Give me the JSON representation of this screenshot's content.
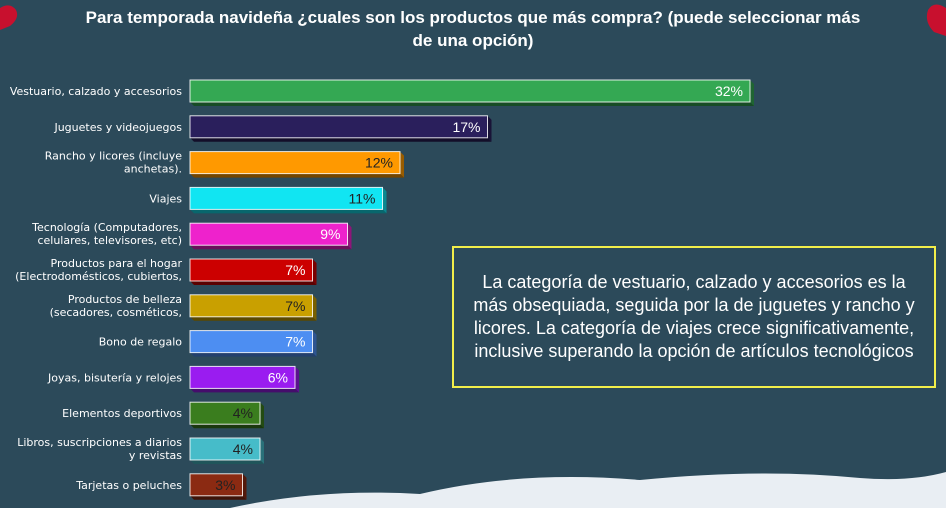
{
  "title_lines": [
    "Para temporada navideña ¿cuales son los productos que más compra? (puede seleccionar más",
    "de una opción)"
  ],
  "insight": "La categoría de vestuario, calzado y accesorios es la más obsequiada, seguida por la de juguetes y rancho y licores. La categoría de viajes crece significativamente, inclusive superando la opción de artículos tecnológicos",
  "colors": {
    "background": "#2c4a5a",
    "label_text": "#ffffff",
    "insight_border": "#f2ee4a",
    "snow": "#e9eef3",
    "decor_red": "#c8102e"
  },
  "chart_data": {
    "type": "bar",
    "orientation": "horizontal",
    "unit": "%",
    "categories": [
      [
        "Vestuario, calzado y accesorios"
      ],
      [
        "Juguetes y videojuegos"
      ],
      [
        "Rancho y licores (incluye",
        "anchetas)."
      ],
      [
        "Viajes"
      ],
      [
        "Tecnología (Computadores,",
        "celulares, televisores, etc)"
      ],
      [
        "Productos para el hogar",
        "(Electrodomésticos, cubiertos,"
      ],
      [
        "Productos de belleza",
        "(secadores, cosméticos,"
      ],
      [
        "Bono de regalo"
      ],
      [
        "Joyas, bisutería y relojes"
      ],
      [
        "Elementos deportivos"
      ],
      [
        "Libros, suscripciones a diarios",
        "y revistas"
      ],
      [
        "Tarjetas o peluches"
      ]
    ],
    "values": [
      32,
      17,
      12,
      11,
      9,
      7,
      7,
      7,
      6,
      4,
      4,
      3
    ],
    "value_labels": [
      "32%",
      "17%",
      "12%",
      "11%",
      "9%",
      "7%",
      "7%",
      "7%",
      "6%",
      "4%",
      "4%",
      "3%"
    ],
    "bar_colors": [
      "#34a853",
      "#2a1f5c",
      "#ff9900",
      "#11e5f2",
      "#ee22cc",
      "#cc0000",
      "#c9a000",
      "#4d8ef2",
      "#9a1cf0",
      "#3a7d1e",
      "#46bcc9",
      "#8b2a12"
    ],
    "value_text_colors": [
      "#ffffff",
      "#ffffff",
      "#222222",
      "#222222",
      "#ffffff",
      "#ffffff",
      "#222222",
      "#ffffff",
      "#ffffff",
      "#222222",
      "#222222",
      "#222222"
    ],
    "xlim": [
      0,
      32
    ]
  }
}
